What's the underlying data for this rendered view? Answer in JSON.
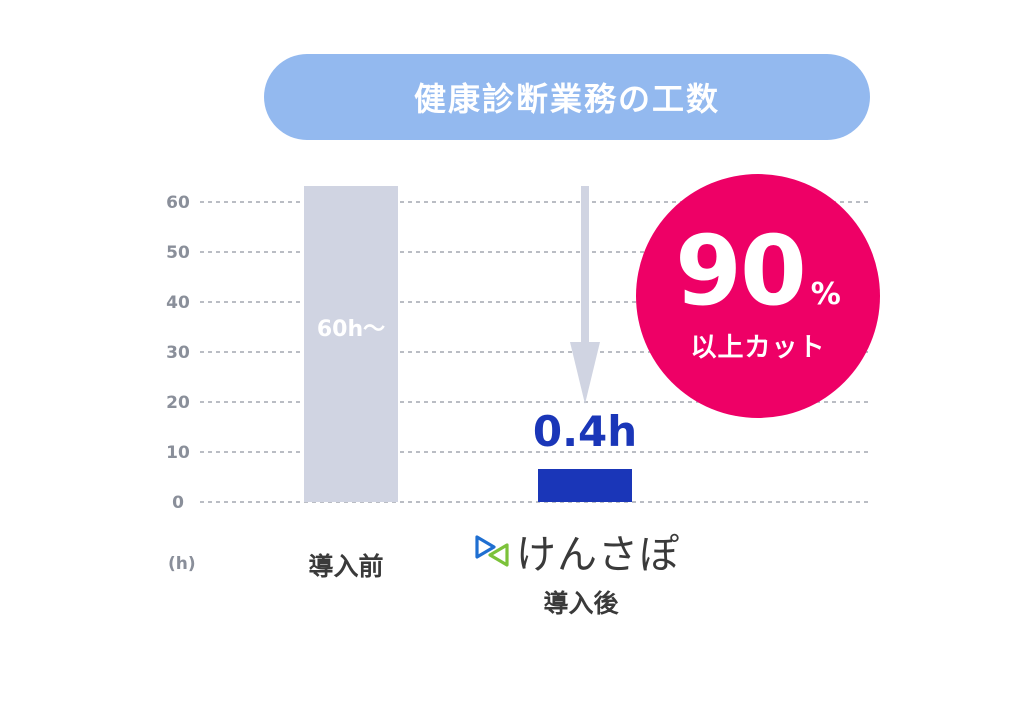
{
  "title": "健康診断業務の工数",
  "chart_data": {
    "type": "bar",
    "categories": [
      "導入前",
      "導入後"
    ],
    "values": [
      60,
      0.4
    ],
    "bar_labels": [
      "60h〜",
      "0.4h"
    ],
    "unit_label": "(h)",
    "yticks": [
      0,
      10,
      20,
      30,
      40,
      50,
      60
    ],
    "ylim": [
      0,
      60
    ],
    "grid": true,
    "bar_colors": [
      "#d0d4e2",
      "#1a36b8"
    ]
  },
  "badge": {
    "value": "90",
    "unit": "%",
    "text": "以上カット",
    "color": "#ee0066"
  },
  "logo": {
    "text": "けんさぽ",
    "icon": "play-triangle-logo-icon"
  }
}
